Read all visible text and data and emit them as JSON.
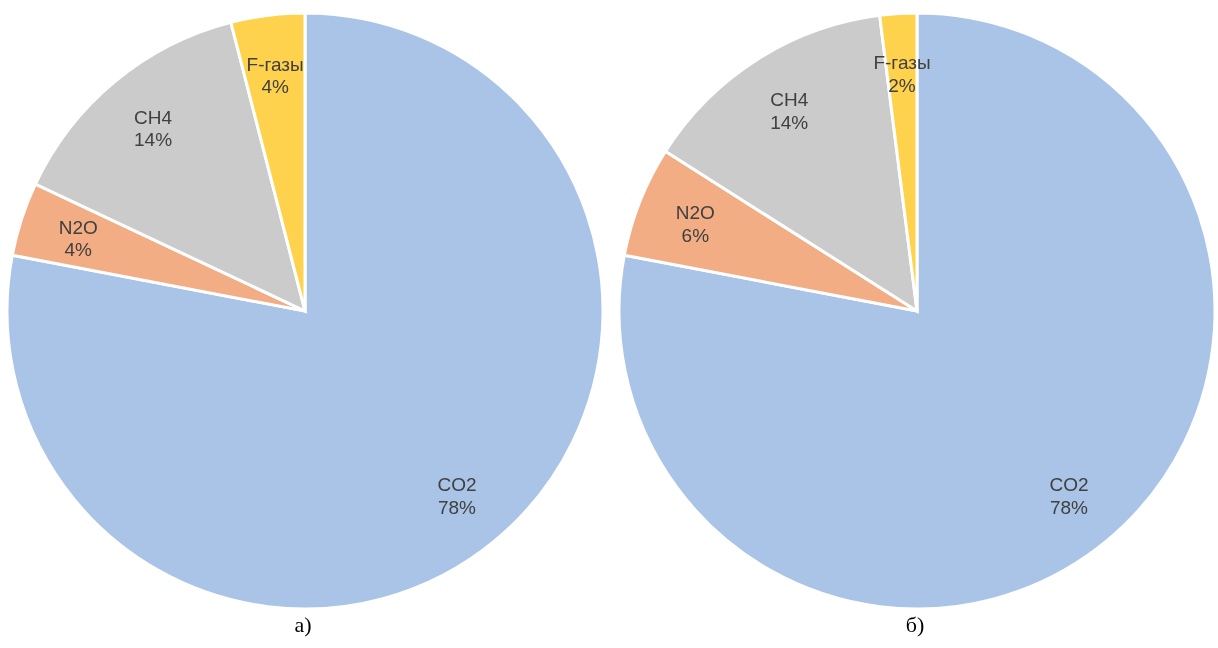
{
  "chart_data": [
    {
      "type": "pie",
      "title": "а)",
      "categories": [
        "CO2",
        "N2O",
        "CH4",
        "F-газы"
      ],
      "values": [
        78,
        4,
        14,
        4
      ],
      "colors": [
        "#a9c4e6",
        "#f2ad84",
        "#cbcbcb",
        "#ffd24d"
      ],
      "value_labels": [
        "78%",
        "4%",
        "14%",
        "4%"
      ]
    },
    {
      "type": "pie",
      "title": "б)",
      "categories": [
        "CO2",
        "N2O",
        "CH4",
        "F-газы"
      ],
      "values": [
        78,
        6,
        14,
        2
      ],
      "colors": [
        "#a9c4e6",
        "#f2ad84",
        "#cbcbcb",
        "#ffd24d"
      ],
      "value_labels": [
        "78%",
        "6%",
        "14%",
        "2%"
      ]
    }
  ]
}
